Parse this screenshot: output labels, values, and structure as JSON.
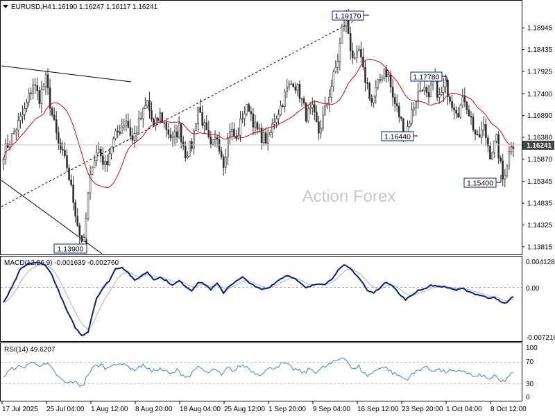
{
  "header": {
    "symbol": "EURUSD,H4",
    "ohlc": "1.16190 1.16247 1.16117 1.16241"
  },
  "watermark": "Action Forex",
  "colors": {
    "candle": "#2d2d2d",
    "ma": "#d0021b",
    "macd_main": "#001c8c",
    "macd_signal": "#b0b0b0",
    "rsi": "#3a86c8",
    "price_tag_bg": "#444444",
    "grid": "#cfcfcf",
    "trendline": "#000000",
    "label_border": "#001c8c"
  },
  "price_axis": {
    "ticks": [
      "1.18945",
      "1.18435",
      "1.17925",
      "1.17400",
      "1.16890",
      "1.16380",
      "1.15870",
      "1.15345",
      "1.14835",
      "1.14325",
      "1.13815"
    ],
    "current_tag": "1.16241"
  },
  "annotations": {
    "low1": "1.13900",
    "high1": "1.19170",
    "high2": "1.17780",
    "low2": "1.16440",
    "low3": "1.15400"
  },
  "macd": {
    "title": "MACD(12,26,9) -0.001639 -0.002760",
    "ticks": [
      "0.004128",
      "0.00",
      "-0.007216"
    ]
  },
  "rsi": {
    "title": "RSI(14) 49.6207",
    "ticks": [
      "100",
      "70",
      "30",
      "0"
    ]
  },
  "time_axis": {
    "labels": [
      "17 Jul 2025",
      "25 Jul 04:00",
      "1 Aug 12:00",
      "8 Aug 20:00",
      "18 Aug 04:00",
      "25 Aug 12:00",
      "1 Sep 20:00",
      "9 Sep 04:00",
      "16 Sep 12:00",
      "23 Sep 20:00",
      "1 Oct 04:00",
      "8 Oct 12:00"
    ]
  },
  "chart_data": [
    {
      "type": "candlestick",
      "title": "EURUSD,H4",
      "ylim": [
        1.1365,
        1.1955
      ],
      "anchors_close": [
        [
          0,
          1.16
        ],
        [
          3,
          1.163
        ],
        [
          6,
          1.166
        ],
        [
          10,
          1.17
        ],
        [
          14,
          1.1765
        ],
        [
          17,
          1.173
        ],
        [
          20,
          1.1772
        ],
        [
          23,
          1.169
        ],
        [
          26,
          1.162
        ],
        [
          30,
          1.157
        ],
        [
          33,
          1.149
        ],
        [
          36,
          1.141
        ],
        [
          38,
          1.139
        ],
        [
          40,
          1.15
        ],
        [
          42,
          1.158
        ],
        [
          45,
          1.161
        ],
        [
          48,
          1.157
        ],
        [
          51,
          1.162
        ],
        [
          54,
          1.165
        ],
        [
          58,
          1.168
        ],
        [
          61,
          1.163
        ],
        [
          64,
          1.167
        ],
        [
          68,
          1.172
        ],
        [
          71,
          1.166
        ],
        [
          74,
          1.169
        ],
        [
          77,
          1.166
        ],
        [
          80,
          1.163
        ],
        [
          83,
          1.166
        ],
        [
          86,
          1.16
        ],
        [
          89,
          1.162
        ],
        [
          92,
          1.171
        ],
        [
          95,
          1.166
        ],
        [
          98,
          1.161
        ],
        [
          101,
          1.164
        ],
        [
          104,
          1.158
        ],
        [
          107,
          1.166
        ],
        [
          110,
          1.163
        ],
        [
          113,
          1.169
        ],
        [
          116,
          1.171
        ],
        [
          119,
          1.166
        ],
        [
          122,
          1.164
        ],
        [
          125,
          1.163
        ],
        [
          128,
          1.168
        ],
        [
          131,
          1.171
        ],
        [
          134,
          1.175
        ],
        [
          137,
          1.177
        ],
        [
          140,
          1.174
        ],
        [
          143,
          1.169
        ],
        [
          146,
          1.17
        ],
        [
          149,
          1.165
        ],
        [
          152,
          1.17
        ],
        [
          155,
          1.176
        ],
        [
          158,
          1.182
        ],
        [
          160,
          1.189
        ],
        [
          162,
          1.1917
        ],
        [
          164,
          1.185
        ],
        [
          166,
          1.181
        ],
        [
          168,
          1.184
        ],
        [
          170,
          1.179
        ],
        [
          172,
          1.176
        ],
        [
          174,
          1.172
        ],
        [
          177,
          1.176
        ],
        [
          180,
          1.18
        ],
        [
          182,
          1.178
        ],
        [
          184,
          1.173
        ],
        [
          187,
          1.169
        ],
        [
          190,
          1.1644
        ],
        [
          192,
          1.168
        ],
        [
          195,
          1.173
        ],
        [
          198,
          1.176
        ],
        [
          201,
          1.172
        ],
        [
          203,
          1.1778
        ],
        [
          206,
          1.173
        ],
        [
          209,
          1.176
        ],
        [
          212,
          1.172
        ],
        [
          215,
          1.17
        ],
        [
          218,
          1.173
        ],
        [
          221,
          1.168
        ],
        [
          224,
          1.163
        ],
        [
          227,
          1.166
        ],
        [
          230,
          1.16
        ],
        [
          233,
          1.163
        ],
        [
          236,
          1.154
        ],
        [
          238,
          1.158
        ],
        [
          240,
          1.1624
        ]
      ],
      "annotations": [
        "1.13900",
        "1.19170",
        "1.17780",
        "1.16440",
        "1.15400"
      ],
      "overlay": "moving average"
    },
    {
      "type": "line",
      "title": "MACD(12,26,9) -0.001639 -0.002760",
      "ylim": [
        -0.0078,
        0.0044
      ],
      "series": [
        {
          "name": "MACD",
          "points": [
            [
              0,
              -0.0023
            ],
            [
              4,
              0.0
            ],
            [
              8,
              0.0027
            ],
            [
              12,
              0.0036
            ],
            [
              16,
              0.0037
            ],
            [
              20,
              0.0033
            ],
            [
              23,
              0.0018
            ],
            [
              26,
              -0.0005
            ],
            [
              30,
              -0.0035
            ],
            [
              34,
              -0.006
            ],
            [
              37,
              -0.0072
            ],
            [
              40,
              -0.0066
            ],
            [
              42,
              -0.004
            ],
            [
              44,
              -0.0016
            ],
            [
              47,
              -0.0001
            ],
            [
              50,
              0.001
            ],
            [
              53,
              0.0028
            ],
            [
              56,
              0.003
            ],
            [
              59,
              0.0022
            ],
            [
              62,
              0.001
            ],
            [
              65,
              0.0017
            ],
            [
              68,
              0.0023
            ],
            [
              71,
              0.0012
            ],
            [
              74,
              0.0015
            ],
            [
              77,
              0.001
            ],
            [
              80,
              0.0003
            ],
            [
              83,
              0.001
            ],
            [
              86,
              0.0002
            ],
            [
              89,
              -0.0005
            ],
            [
              92,
              0.0008
            ],
            [
              95,
              0.0005
            ],
            [
              98,
              -0.0003
            ],
            [
              101,
              0.0006
            ],
            [
              104,
              -0.0008
            ],
            [
              107,
              0.0003
            ],
            [
              110,
              0.0009
            ],
            [
              113,
              0.0015
            ],
            [
              116,
              0.0008
            ],
            [
              119,
              0.0001
            ],
            [
              122,
              -0.0003
            ],
            [
              125,
              -0.0001
            ],
            [
              128,
              0.0006
            ],
            [
              131,
              0.0013
            ],
            [
              134,
              0.0018
            ],
            [
              137,
              0.0015
            ],
            [
              140,
              0.0007
            ],
            [
              143,
              -0.0001
            ],
            [
              146,
              0.0003
            ],
            [
              149,
              0.0006
            ],
            [
              152,
              0.0005
            ],
            [
              155,
              0.0012
            ],
            [
              158,
              0.0025
            ],
            [
              161,
              0.0033
            ],
            [
              164,
              0.0028
            ],
            [
              167,
              0.0018
            ],
            [
              170,
              0.0006
            ],
            [
              172,
              -0.0005
            ],
            [
              175,
              -0.0008
            ],
            [
              178,
              0.0
            ],
            [
              181,
              0.0008
            ],
            [
              184,
              0.0003
            ],
            [
              187,
              -0.001
            ],
            [
              190,
              -0.0018
            ],
            [
              193,
              -0.0012
            ],
            [
              196,
              -0.0004
            ],
            [
              199,
              -0.0002
            ],
            [
              202,
              0.0003
            ],
            [
              205,
              0.0002
            ],
            [
              208,
              0.0001
            ],
            [
              211,
              -0.0001
            ],
            [
              214,
              -0.0004
            ],
            [
              217,
              -0.0002
            ],
            [
              220,
              -0.0006
            ],
            [
              223,
              -0.001
            ],
            [
              226,
              -0.0012
            ],
            [
              229,
              -0.0016
            ],
            [
              232,
              -0.0014
            ],
            [
              235,
              -0.0022
            ],
            [
              237,
              -0.0024
            ],
            [
              239,
              -0.0019
            ],
            [
              241,
              -0.0013
            ]
          ]
        },
        {
          "name": "Signal",
          "lag": 4
        }
      ]
    },
    {
      "type": "line",
      "title": "RSI(14) 49.6207",
      "ylim": [
        0,
        100
      ],
      "series": [
        {
          "name": "RSI",
          "points": [
            [
              0,
              42
            ],
            [
              3,
              55
            ],
            [
              6,
              62
            ],
            [
              9,
              60
            ],
            [
              12,
              68
            ],
            [
              15,
              70
            ],
            [
              18,
              64
            ],
            [
              21,
              66
            ],
            [
              24,
              52
            ],
            [
              27,
              38
            ],
            [
              30,
              30
            ],
            [
              33,
              34
            ],
            [
              36,
              27
            ],
            [
              38,
              30
            ],
            [
              40,
              48
            ],
            [
              43,
              62
            ],
            [
              46,
              66
            ],
            [
              49,
              58
            ],
            [
              52,
              70
            ],
            [
              55,
              64
            ],
            [
              58,
              68
            ],
            [
              61,
              55
            ],
            [
              64,
              62
            ],
            [
              67,
              64
            ],
            [
              70,
              52
            ],
            [
              73,
              58
            ],
            [
              76,
              55
            ],
            [
              79,
              47
            ],
            [
              82,
              55
            ],
            [
              85,
              46
            ],
            [
              88,
              43
            ],
            [
              91,
              62
            ],
            [
              94,
              55
            ],
            [
              97,
              50
            ],
            [
              100,
              58
            ],
            [
              103,
              44
            ],
            [
              106,
              60
            ],
            [
              109,
              54
            ],
            [
              112,
              64
            ],
            [
              115,
              62
            ],
            [
              118,
              52
            ],
            [
              121,
              48
            ],
            [
              124,
              55
            ],
            [
              127,
              60
            ],
            [
              130,
              64
            ],
            [
              133,
              68
            ],
            [
              136,
              60
            ],
            [
              139,
              55
            ],
            [
              142,
              50
            ],
            [
              145,
              58
            ],
            [
              148,
              52
            ],
            [
              151,
              60
            ],
            [
              154,
              66
            ],
            [
              157,
              72
            ],
            [
              160,
              80
            ],
            [
              162,
              78
            ],
            [
              164,
              62
            ],
            [
              166,
              56
            ],
            [
              168,
              62
            ],
            [
              170,
              52
            ],
            [
              172,
              45
            ],
            [
              175,
              52
            ],
            [
              178,
              62
            ],
            [
              181,
              60
            ],
            [
              184,
              50
            ],
            [
              187,
              45
            ],
            [
              190,
              38
            ],
            [
              193,
              46
            ],
            [
              196,
              56
            ],
            [
              199,
              62
            ],
            [
              202,
              55
            ],
            [
              205,
              58
            ],
            [
              208,
              52
            ],
            [
              211,
              55
            ],
            [
              214,
              50
            ],
            [
              217,
              56
            ],
            [
              220,
              48
            ],
            [
              223,
              42
            ],
            [
              226,
              46
            ],
            [
              229,
              38
            ],
            [
              232,
              44
            ],
            [
              235,
              33
            ],
            [
              237,
              36
            ],
            [
              239,
              45
            ],
            [
              241,
              50
            ]
          ],
          "reference_lines": [
            70,
            30
          ]
        }
      ]
    }
  ]
}
